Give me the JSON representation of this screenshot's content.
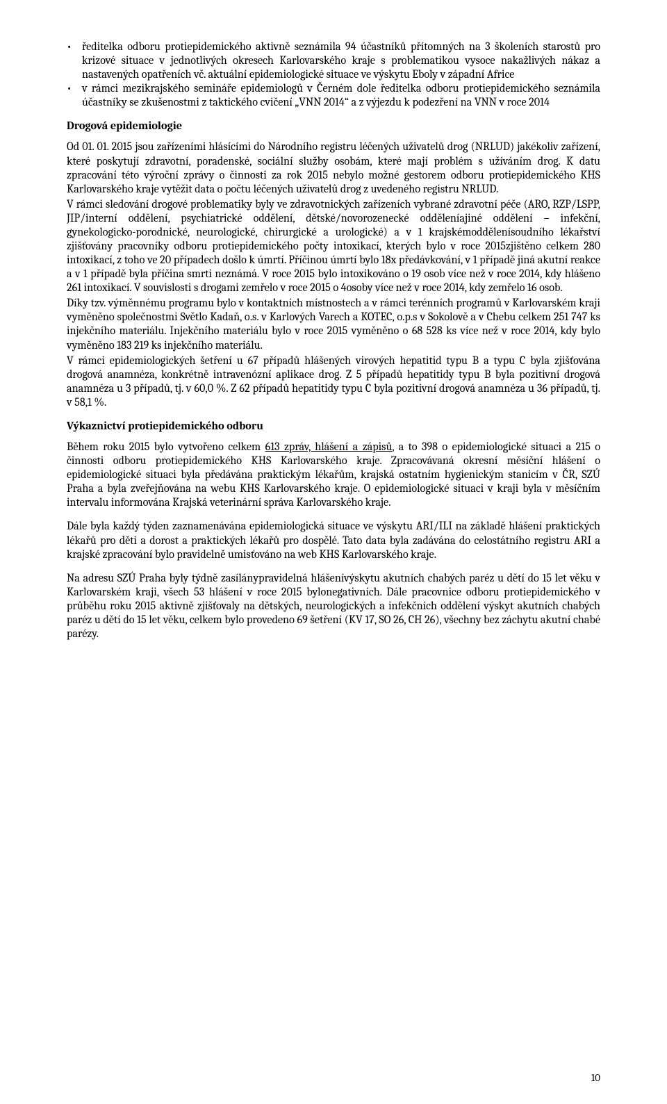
{
  "bullets": [
    "ředitelka odboru protiepidemického aktivně seznámila 94 účastníků přítomných na 3 školeních starostů pro krizové situace v jednotlivých okresech Karlovarského kraje s problematikou vysoce nakažlivých nákaz a nastavených opatřeních vč. aktuální epidemiologické situace ve výskytu Eboly v západní Africe",
    "v rámci mezikrajského semináře epidemiologů v Černém dole ředitelka odboru protiepidemického seznámila účastníky se zkušenostmi z taktického cvičení „VNN 2014“ a z výjezdu k podezření na VNN v roce 2014"
  ],
  "heading1": "Drogová epidemiologie",
  "para1a": "Od 01. 01. 2015 jsou zařízeními hlásícími do Národního registru léčených uživatelů drog (NRLUD) jakékoliv zařízení, které poskytují zdravotní, poradenské, sociální služby osobám, které mají problém s užíváním drog. K datu zpracování této výroční zprávy o činnosti za rok 2015 nebylo možné gestorem odboru protiepidemického KHS Karlovarského kraje vytěžit data o počtu léčených uživatelů drog z uvedeného registru NRLUD.",
  "para1b": "V rámci sledování drogové problematiky byly ve zdravotnických zařízeních vybrané zdravotní péče (ARO, RZP/LSPP, JIP/interní oddělení, psychiatrické oddělení, dětské/novorozenecké odděleníajiné oddělení – infekční, gynekologicko-porodnické, neurologické, chirurgické a urologické) a v 1 krajskémoddělenísoudního lékařství zjišťovány pracovníky odboru protiepidemického počty intoxikací, kterých bylo v roce 2015zjištěno celkem 280 intoxikací, z toho ve 20 případech došlo k úmrtí. Příčinou úmrtí bylo 18x předávkování, v 1 případě jiná akutní reakce a v 1 případě byla příčina smrti neznámá. V roce 2015 bylo intoxikováno o 19 osob více než v roce 2014, kdy hlášeno 261 intoxikací. V souvislosti s drogami zemřelo v roce 2015 o 4osoby více než v roce 2014, kdy zemřelo 16 osob.",
  "para1c": "Díky tzv. výměnnému programu bylo v kontaktních místnostech a v rámci terénních programů v Karlovarském kraji vyměněno společnostmi Světlo Kadaň, o.s. v Karlových Varech a KOTEC, o.p.s v Sokolově a v Chebu celkem 251 747 ks injekčního materiálu. Injekčního materiálu bylo v roce 2015 vyměněno o 68 528 ks více než v roce 2014, kdy bylo vyměněno 183 219 ks injekčního materiálu.",
  "para1d": "V rámci epidemiologických šetření u 67 případů hlášených virových hepatitid typu B a typu C byla zjišťována drogová anamnéza, konkrétně intravenózní aplikace drog. Z 5 případů hepatitidy typu B byla pozitivní drogová anamnéza u 3 případů, tj. v 60,0 %. Z 62 případů hepatitidy typu C byla pozitivní drogová anamnéza u 36 případů, tj. v 58,1 %.",
  "heading2": "Výkaznictví protiepidemického odboru",
  "para2a_pre": "Během roku 2015 bylo vytvořeno celkem ",
  "para2a_underline": "613 zpráv, hlášení a zápisů",
  "para2a_post": ", a to 398 o epidemiologické situaci a 215 o činnosti odboru protiepidemického KHS Karlovarského kraje. Zpracovávaná okresní měsíční hlášení o epidemiologické situaci byla předávána praktickým lékařům, krajská ostatním hygienickým stanicím v ČR, SZÚ Praha a byla zveřejňována na webu KHS Karlovarského kraje. O epidemiologické situaci v kraji byla v měsíčním intervalu informována Krajská veterinární správa Karlovarského kraje.",
  "para2b": "Dále byla každý týden zaznamenávána epidemiologická situace ve výskytu ARI/ILI na základě hlášení praktických lékařů pro děti a dorost a praktických lékařů pro dospělé. Tato data byla zadávána do celostátního registru ARI a krajské zpracování bylo pravidelně umisťováno na web KHS Karlovarského kraje.",
  "para2c": "Na adresu SZÚ Praha byly týdně zasílánypravidelná hlášenívýskytu akutních chabých paréz u dětí do 15 let věku v Karlovarském kraji, všech 53 hlášení v roce 2015 bylonegativních. Dále pracovnice odboru protiepidemického v průběhu roku 2015 aktivně zjišťovaly na dětských, neurologických a infekčních oddělení výskyt akutních chabých paréz u dětí do 15 let věku, celkem bylo provedeno 69 šetření (KV 17, SO 26, CH 26), všechny bez záchytu akutní chabé parézy.",
  "pageNumber": "10"
}
